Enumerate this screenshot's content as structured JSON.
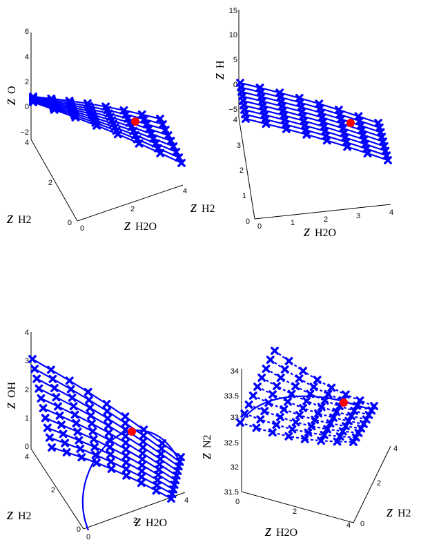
{
  "chart_data": [
    {
      "type": "line",
      "projection": "3d",
      "axes": {
        "x": {
          "subscript": "H2O",
          "ticks": [
            "0",
            "2",
            "4"
          ],
          "range": [
            0,
            4
          ]
        },
        "y": {
          "subscript": "H2",
          "ticks": [
            "0",
            "2",
            "4"
          ],
          "range": [
            0,
            4
          ]
        },
        "z": {
          "subscript": "O",
          "ticks": [
            "−2",
            "0",
            "2",
            "4",
            "6"
          ],
          "range": [
            -2,
            6
          ]
        }
      },
      "series_color": "#0000ff",
      "marker": "x",
      "equilibrium_point": {
        "color": "#ff0000",
        "x": 2.2,
        "y": 2.4,
        "z": 0.0
      }
    },
    {
      "type": "line",
      "projection": "3d",
      "axes": {
        "x": {
          "subscript": "H2O",
          "ticks": [
            "0",
            "1",
            "2",
            "3",
            "4"
          ],
          "range": [
            0,
            4
          ]
        },
        "y": {
          "subscript": "",
          "ticks": [
            "0",
            "1",
            "2",
            "3",
            "4"
          ],
          "range": [
            0,
            4
          ]
        },
        "z": {
          "subscript": "H",
          "ticks": [
            "−5",
            "0",
            "5",
            "10",
            "15"
          ],
          "range": [
            -5,
            15
          ]
        }
      },
      "series_color": "#0000ff",
      "marker": "x",
      "equilibrium_point": {
        "color": "#ff0000",
        "x": 2.6,
        "y": 2.8,
        "z": -1.0
      }
    },
    {
      "type": "line",
      "projection": "3d",
      "axes": {
        "x": {
          "subscript": "H2O",
          "ticks": [
            "0",
            "2",
            "4"
          ],
          "range": [
            0,
            4
          ]
        },
        "y": {
          "subscript": "H2",
          "ticks": [
            "0",
            "2",
            "4"
          ],
          "range": [
            0,
            4
          ]
        },
        "z": {
          "subscript": "OH",
          "ticks": [
            "0",
            "1",
            "2",
            "3",
            "4"
          ],
          "range": [
            0,
            4
          ]
        }
      },
      "series_color": "#0000ff",
      "marker": "x",
      "equilibrium_point": {
        "color": "#ff0000",
        "x": 2.0,
        "y": 2.2,
        "z": 1.0
      }
    },
    {
      "type": "line",
      "projection": "3d",
      "axes": {
        "x": {
          "subscript": "H2O",
          "ticks": [
            "0",
            "2",
            "4"
          ],
          "range": [
            0,
            4
          ]
        },
        "y": {
          "subscript": "H2",
          "ticks": [
            "0",
            "2",
            "4"
          ],
          "range": [
            0,
            4
          ]
        },
        "z": {
          "subscript": "N2",
          "ticks": [
            "31.5",
            "32",
            "32.5",
            "33",
            "33.5",
            "34"
          ],
          "range": [
            31.5,
            34
          ]
        }
      },
      "series_color": "#0000ff",
      "marker": "x",
      "equilibrium_point": {
        "color": "#ff0000",
        "x": 2.3,
        "y": 2.1,
        "z": 33.3
      }
    }
  ]
}
